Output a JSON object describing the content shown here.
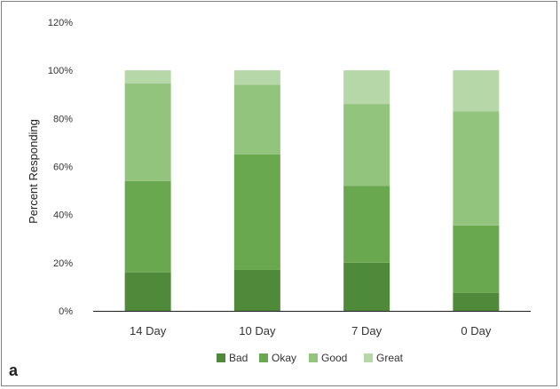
{
  "panel_label": "a",
  "chart_data": {
    "type": "bar",
    "stacked": true,
    "categories": [
      "14 Day",
      "10 Day",
      "7 Day",
      "0 Day"
    ],
    "series": [
      {
        "name": "Bad",
        "color": "#4e8a3a",
        "values": [
          16,
          17,
          20,
          7.5
        ]
      },
      {
        "name": "Okay",
        "color": "#6aa84f",
        "values": [
          38,
          48,
          32,
          28
        ]
      },
      {
        "name": "Good",
        "color": "#93c47d",
        "values": [
          40.5,
          29,
          34,
          47.5
        ]
      },
      {
        "name": "Great",
        "color": "#b6d7a8",
        "values": [
          5.5,
          6,
          14,
          17
        ]
      }
    ],
    "ylabel": "Percent Responding",
    "ylim": [
      0,
      120
    ],
    "yticks": [
      "0%",
      "20%",
      "40%",
      "60%",
      "80%",
      "100%",
      "120%"
    ],
    "ytick_values": [
      0,
      20,
      40,
      60,
      80,
      100,
      120
    ],
    "grid": false,
    "legend_position": "bottom"
  }
}
